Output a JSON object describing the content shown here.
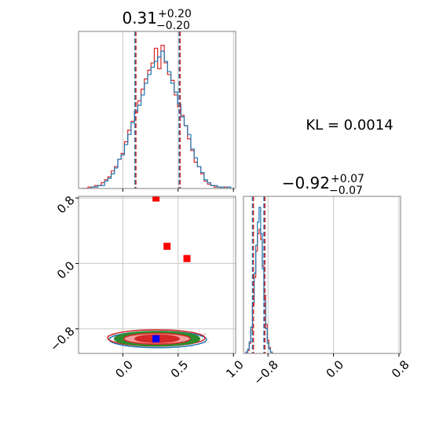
{
  "chart_data": {
    "type": "corner",
    "colors": {
      "series_a": "#1f77b4",
      "series_b": "#d62728",
      "contour_green": "#2e8b2e",
      "contour_pink": "#f0a0a0",
      "marker_red": "#ff0000",
      "marker_blue": "#0000ff",
      "quantile_line": "#d62728"
    },
    "annotation": "KL = 0.0014",
    "param1": {
      "title_main": "0.31",
      "title_sup": "+0.20",
      "title_sub": "−0.20",
      "median": 0.31,
      "quantiles": [
        0.11,
        0.51
      ],
      "xlim": [
        -0.4,
        1.02
      ],
      "ticks": [
        0.0,
        0.5,
        1.0
      ],
      "tick_labels": [
        "0.0",
        "0.5",
        "1.0"
      ]
    },
    "param2": {
      "title_main": "−0.92",
      "title_sup": "+0.07",
      "title_sub": "−0.07",
      "median": -0.92,
      "quantiles": [
        -0.99,
        -0.85
      ],
      "lim": [
        -1.1,
        0.82
      ],
      "ticks": [
        -0.8,
        0.0,
        0.8
      ],
      "tick_labels": [
        "−0.8",
        "0.0",
        "0.8"
      ]
    },
    "hist1_x": [
      -0.36,
      -0.33,
      -0.3,
      -0.27,
      -0.24,
      -0.21,
      -0.18,
      -0.15,
      -0.12,
      -0.09,
      -0.06,
      -0.03,
      0.0,
      0.03,
      0.06,
      0.09,
      0.12,
      0.15,
      0.18,
      0.21,
      0.24,
      0.27,
      0.3,
      0.33,
      0.36,
      0.39,
      0.42,
      0.45,
      0.48,
      0.51,
      0.54,
      0.57,
      0.6,
      0.63,
      0.66,
      0.69,
      0.72,
      0.75,
      0.78,
      0.81,
      0.84,
      0.87,
      0.9,
      0.93,
      0.96,
      0.99
    ],
    "hist1_a": [
      0.0,
      0.0,
      0.0,
      0.01,
      0.01,
      0.02,
      0.02,
      0.05,
      0.07,
      0.1,
      0.14,
      0.2,
      0.23,
      0.3,
      0.37,
      0.45,
      0.53,
      0.57,
      0.64,
      0.72,
      0.78,
      0.83,
      0.87,
      0.9,
      0.94,
      0.87,
      0.8,
      0.72,
      0.66,
      0.58,
      0.49,
      0.43,
      0.37,
      0.27,
      0.21,
      0.15,
      0.11,
      0.06,
      0.04,
      0.02,
      0.02,
      0.01,
      0.01,
      0.0,
      0.01,
      0.0
    ],
    "hist1_b": [
      0.0,
      0.0,
      0.01,
      0.01,
      0.02,
      0.02,
      0.04,
      0.06,
      0.08,
      0.12,
      0.15,
      0.2,
      0.24,
      0.32,
      0.4,
      0.46,
      0.52,
      0.6,
      0.68,
      0.75,
      0.81,
      0.86,
      0.96,
      0.82,
      0.98,
      0.86,
      0.78,
      0.74,
      0.64,
      0.56,
      0.5,
      0.43,
      0.34,
      0.26,
      0.18,
      0.15,
      0.1,
      0.05,
      0.03,
      0.02,
      0.01,
      0.01,
      0.0,
      0.01,
      0.0,
      0.0
    ],
    "hist2_x": [
      -1.06,
      -1.04,
      -1.02,
      -1.0,
      -0.98,
      -0.96,
      -0.94,
      -0.92,
      -0.9,
      -0.88,
      -0.86,
      -0.84,
      -0.82,
      -0.8,
      -0.78,
      -0.76,
      -0.74
    ],
    "hist2_a": [
      0.01,
      0.03,
      0.08,
      0.18,
      0.35,
      0.55,
      0.74,
      0.9,
      1.0,
      0.82,
      0.58,
      0.36,
      0.17,
      0.07,
      0.03,
      0.01,
      0.0
    ],
    "hist2_b": [
      0.0,
      0.02,
      0.07,
      0.16,
      0.33,
      0.52,
      0.7,
      0.82,
      0.85,
      0.78,
      0.6,
      0.4,
      0.2,
      0.09,
      0.04,
      0.01,
      0.0
    ],
    "contour_center": [
      0.31,
      -0.92
    ],
    "contour_radii": [
      [
        0.44,
        0.1
      ],
      [
        0.38,
        0.082
      ],
      [
        0.3,
        0.066
      ],
      [
        0.2,
        0.046
      ]
    ],
    "markers_red": [
      [
        0.3,
        0.8
      ],
      [
        0.4,
        0.21
      ],
      [
        0.58,
        0.06
      ]
    ],
    "marker_true": [
      0.3,
      -0.92
    ]
  }
}
